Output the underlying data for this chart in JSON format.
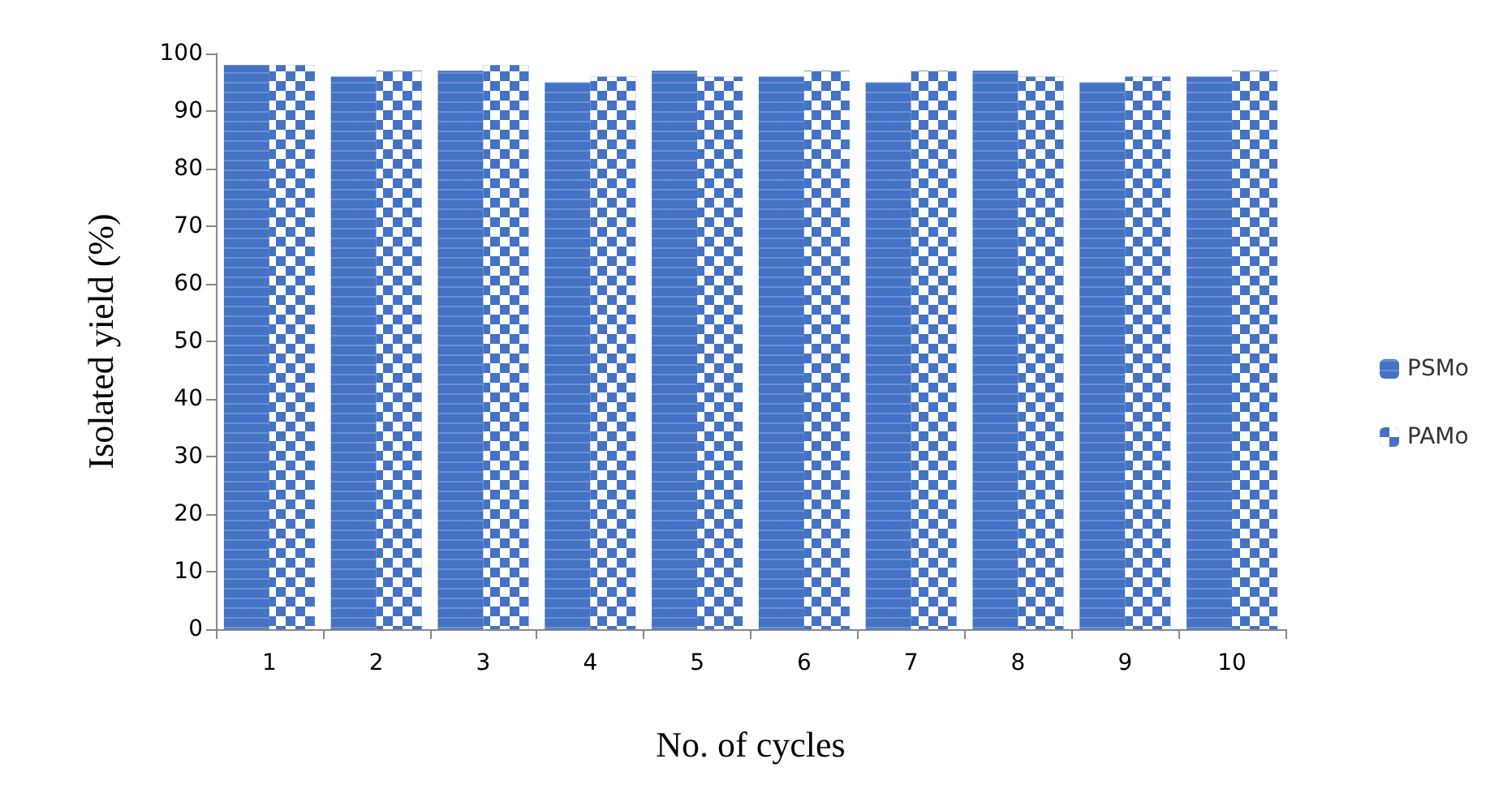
{
  "chart_data": {
    "type": "bar",
    "xlabel": "No. of cycles",
    "ylabel": "Isolated yield (%)",
    "categories": [
      "1",
      "2",
      "3",
      "4",
      "5",
      "6",
      "7",
      "8",
      "9",
      "10"
    ],
    "series": [
      {
        "name": "PSMo",
        "color": "#4472c4",
        "values": [
          98,
          96,
          97,
          95,
          97,
          96,
          95,
          97,
          95,
          96
        ]
      },
      {
        "name": "PAMo",
        "color": "#4472c4",
        "values": [
          98,
          97,
          98,
          96,
          96,
          97,
          97,
          96,
          96,
          97
        ]
      }
    ],
    "ylim": [
      0,
      100
    ],
    "yticks": [
      0,
      10,
      20,
      30,
      40,
      50,
      60,
      70,
      80,
      90,
      100
    ],
    "grid": false,
    "legend": "right"
  }
}
